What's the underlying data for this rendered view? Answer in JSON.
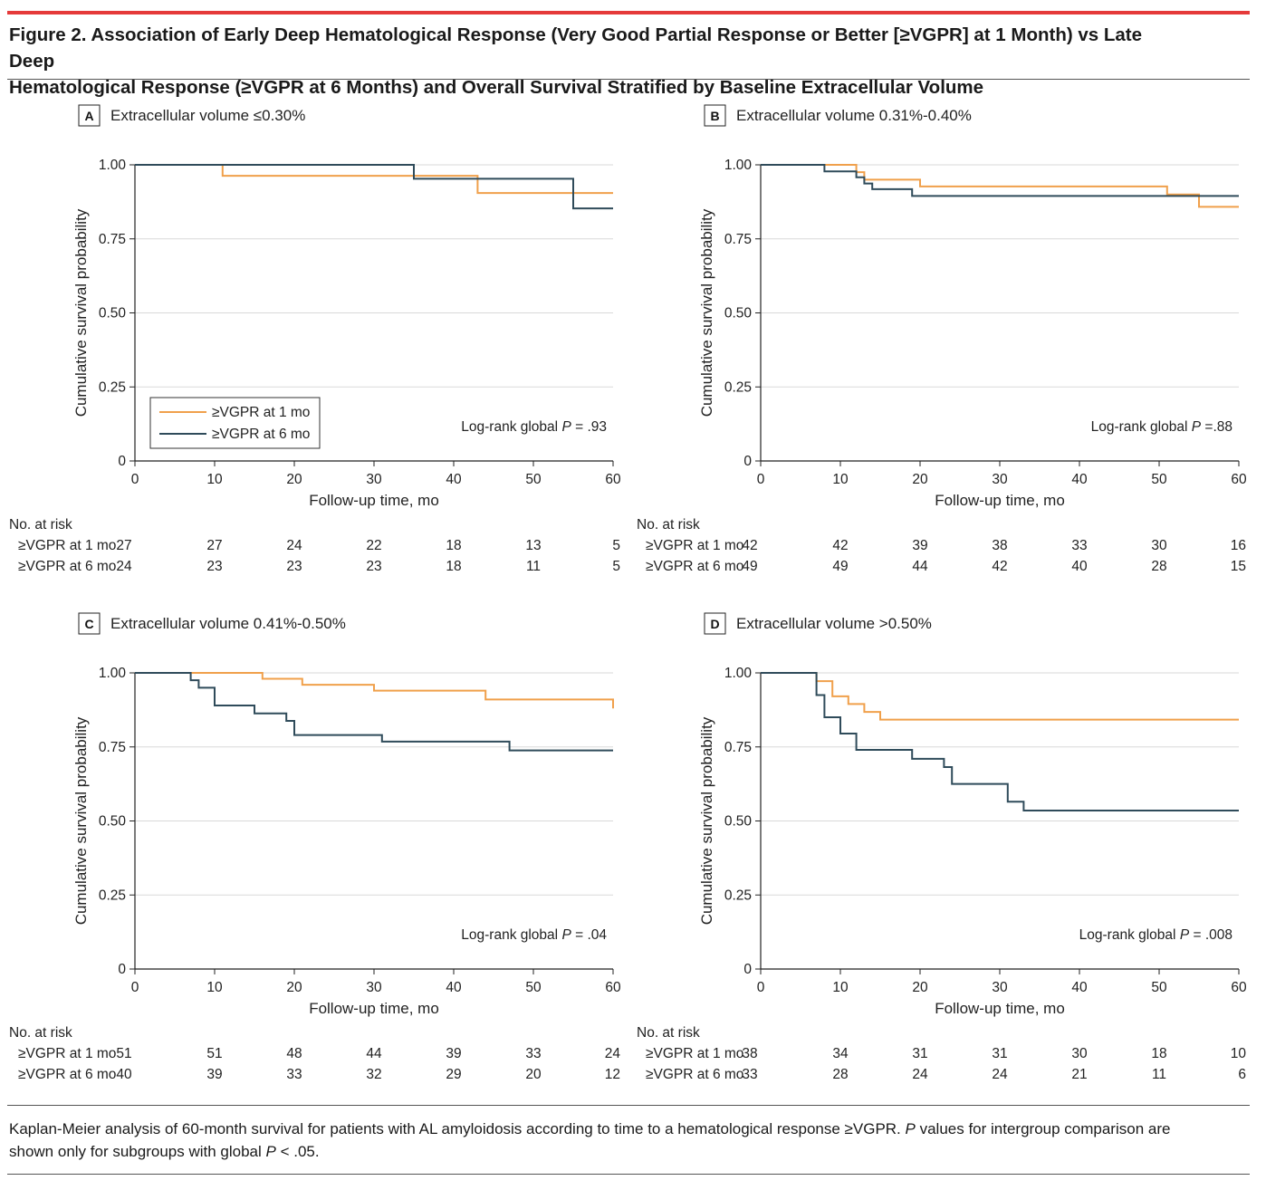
{
  "figure": {
    "title_line1": "Figure 2. Association of Early Deep Hematological Response (Very Good Partial Response or Better [≥VGPR] at 1 Month) vs Late Deep",
    "title_line2": "Hematological Response (≥VGPR at 6 Months) and Overall Survival Stratified by Baseline Extracellular Volume",
    "caption_part1": "Kaplan-Meier analysis of 60-month survival for patients with AL amyloidosis according to time to a hematological response ≥VGPR. ",
    "caption_italic_p": "P",
    "caption_part2": " values for intergroup comparison are shown only for subgroups with global ",
    "caption_italic_p2": "P",
    "caption_part3": " < .05."
  },
  "colors": {
    "vgpr_1mo": "#f0a04b",
    "vgpr_6mo": "#2f4b5a",
    "accent_bar": "#e53a3a",
    "gridline": "#d9d9d9"
  },
  "labels": {
    "ylabel": "Cumulative survival probability",
    "xlabel": "Follow-up time, mo",
    "risk_header": "No. at risk",
    "pvalue_prefix": "Log-rank global ",
    "pvalue_italic": "P"
  },
  "chart_data": [
    {
      "type": "line",
      "panel_letter": "A",
      "panel_title": "Extracellular volume ≤0.30%",
      "xlim": [
        0,
        60
      ],
      "ylim": [
        0,
        1
      ],
      "xticks": [
        0,
        10,
        20,
        30,
        40,
        50,
        60
      ],
      "yticks": [
        0,
        0.25,
        0.5,
        0.75,
        1.0
      ],
      "ytick_labels": [
        "0",
        "0.25",
        "0.50",
        "0.75",
        "1.00"
      ],
      "pvalue": "= .93",
      "legend": {
        "show": true,
        "placement": "bottom-left"
      },
      "series": [
        {
          "name": "≥VGPR at 1 mo",
          "step": true,
          "x": [
            0,
            11,
            43,
            60
          ],
          "y": [
            1.0,
            0.963,
            0.905,
            0.905
          ]
        },
        {
          "name": "≥VGPR at 6 mo",
          "step": true,
          "x": [
            0,
            35,
            55,
            60
          ],
          "y": [
            1.0,
            0.953,
            0.853,
            0.853
          ]
        }
      ],
      "risk_table": {
        "times": [
          0,
          10,
          20,
          30,
          40,
          50,
          60
        ],
        "rows": [
          {
            "label": "≥VGPR at 1 mo",
            "values": [
              "27",
              "27",
              "24",
              "22",
              "18",
              "13",
              "5"
            ]
          },
          {
            "label": "≥VGPR at 6 mo",
            "values": [
              "24",
              "23",
              "23",
              "23",
              "18",
              "11",
              "5"
            ]
          }
        ]
      }
    },
    {
      "type": "line",
      "panel_letter": "B",
      "panel_title": "Extracellular volume 0.31%-0.40%",
      "xlim": [
        0,
        60
      ],
      "ylim": [
        0,
        1
      ],
      "xticks": [
        0,
        10,
        20,
        30,
        40,
        50,
        60
      ],
      "yticks": [
        0,
        0.25,
        0.5,
        0.75,
        1.0
      ],
      "ytick_labels": [
        "0",
        "0.25",
        "0.50",
        "0.75",
        "1.00"
      ],
      "pvalue": "=.88",
      "legend": {
        "show": false
      },
      "series": [
        {
          "name": "≥VGPR at 1 mo",
          "step": true,
          "x": [
            0,
            12,
            13,
            20,
            51,
            55,
            60
          ],
          "y": [
            1.0,
            0.975,
            0.95,
            0.927,
            0.9,
            0.858,
            0.858
          ]
        },
        {
          "name": "≥VGPR at 6 mo",
          "step": true,
          "x": [
            0,
            8,
            12,
            13,
            14,
            19,
            60
          ],
          "y": [
            1.0,
            0.978,
            0.958,
            0.937,
            0.918,
            0.895,
            0.895
          ]
        }
      ],
      "risk_table": {
        "times": [
          0,
          10,
          20,
          30,
          40,
          50,
          60
        ],
        "rows": [
          {
            "label": "≥VGPR at 1 mo",
            "values": [
              "42",
              "42",
              "39",
              "38",
              "33",
              "30",
              "16"
            ]
          },
          {
            "label": "≥VGPR at 6 mo",
            "values": [
              "49",
              "49",
              "44",
              "42",
              "40",
              "28",
              "15"
            ]
          }
        ]
      }
    },
    {
      "type": "line",
      "panel_letter": "C",
      "panel_title": "Extracellular volume 0.41%-0.50%",
      "xlim": [
        0,
        60
      ],
      "ylim": [
        0,
        1
      ],
      "xticks": [
        0,
        10,
        20,
        30,
        40,
        50,
        60
      ],
      "yticks": [
        0,
        0.25,
        0.5,
        0.75,
        1.0
      ],
      "ytick_labels": [
        "0",
        "0.25",
        "0.50",
        "0.75",
        "1.00"
      ],
      "pvalue": "= .04",
      "legend": {
        "show": false
      },
      "series": [
        {
          "name": "≥VGPR at 1 mo",
          "step": true,
          "x": [
            0,
            16,
            21,
            30,
            44,
            60
          ],
          "y": [
            1.0,
            0.98,
            0.96,
            0.94,
            0.91,
            0.88
          ]
        },
        {
          "name": "≥VGPR at 6 mo",
          "step": true,
          "x": [
            0,
            7,
            8,
            10,
            15,
            19,
            20,
            31,
            47,
            60
          ],
          "y": [
            1.0,
            0.975,
            0.95,
            0.89,
            0.863,
            0.838,
            0.79,
            0.768,
            0.738,
            0.738
          ]
        }
      ],
      "risk_table": {
        "times": [
          0,
          10,
          20,
          30,
          40,
          50,
          60
        ],
        "rows": [
          {
            "label": "≥VGPR at 1 mo",
            "values": [
              "51",
              "51",
              "48",
              "44",
              "39",
              "33",
              "24"
            ]
          },
          {
            "label": "≥VGPR at 6 mo",
            "values": [
              "40",
              "39",
              "33",
              "32",
              "29",
              "20",
              "12"
            ]
          }
        ]
      }
    },
    {
      "type": "line",
      "panel_letter": "D",
      "panel_title": "Extracellular volume >0.50%",
      "xlim": [
        0,
        60
      ],
      "ylim": [
        0,
        1
      ],
      "xticks": [
        0,
        10,
        20,
        30,
        40,
        50,
        60
      ],
      "yticks": [
        0,
        0.25,
        0.5,
        0.75,
        1.0
      ],
      "ytick_labels": [
        "0",
        "0.25",
        "0.50",
        "0.75",
        "1.00"
      ],
      "pvalue": "= .008",
      "legend": {
        "show": false
      },
      "series": [
        {
          "name": "≥VGPR at 1 mo",
          "step": true,
          "x": [
            0,
            7,
            9,
            11,
            13,
            15,
            60
          ],
          "y": [
            1.0,
            0.972,
            0.921,
            0.895,
            0.868,
            0.842,
            0.842
          ]
        },
        {
          "name": "≥VGPR at 6 mo",
          "step": true,
          "x": [
            0,
            7,
            8,
            10,
            12,
            19,
            23,
            24,
            31,
            33,
            60
          ],
          "y": [
            1.0,
            0.925,
            0.85,
            0.795,
            0.74,
            0.71,
            0.682,
            0.625,
            0.565,
            0.535,
            0.535
          ]
        }
      ],
      "risk_table": {
        "times": [
          0,
          10,
          20,
          30,
          40,
          50,
          60
        ],
        "rows": [
          {
            "label": "≥VGPR at 1 mo",
            "values": [
              "38",
              "34",
              "31",
              "31",
              "30",
              "18",
              "10"
            ]
          },
          {
            "label": "≥VGPR at 6 mo",
            "values": [
              "33",
              "28",
              "24",
              "24",
              "21",
              "11",
              "6"
            ]
          }
        ]
      }
    }
  ]
}
